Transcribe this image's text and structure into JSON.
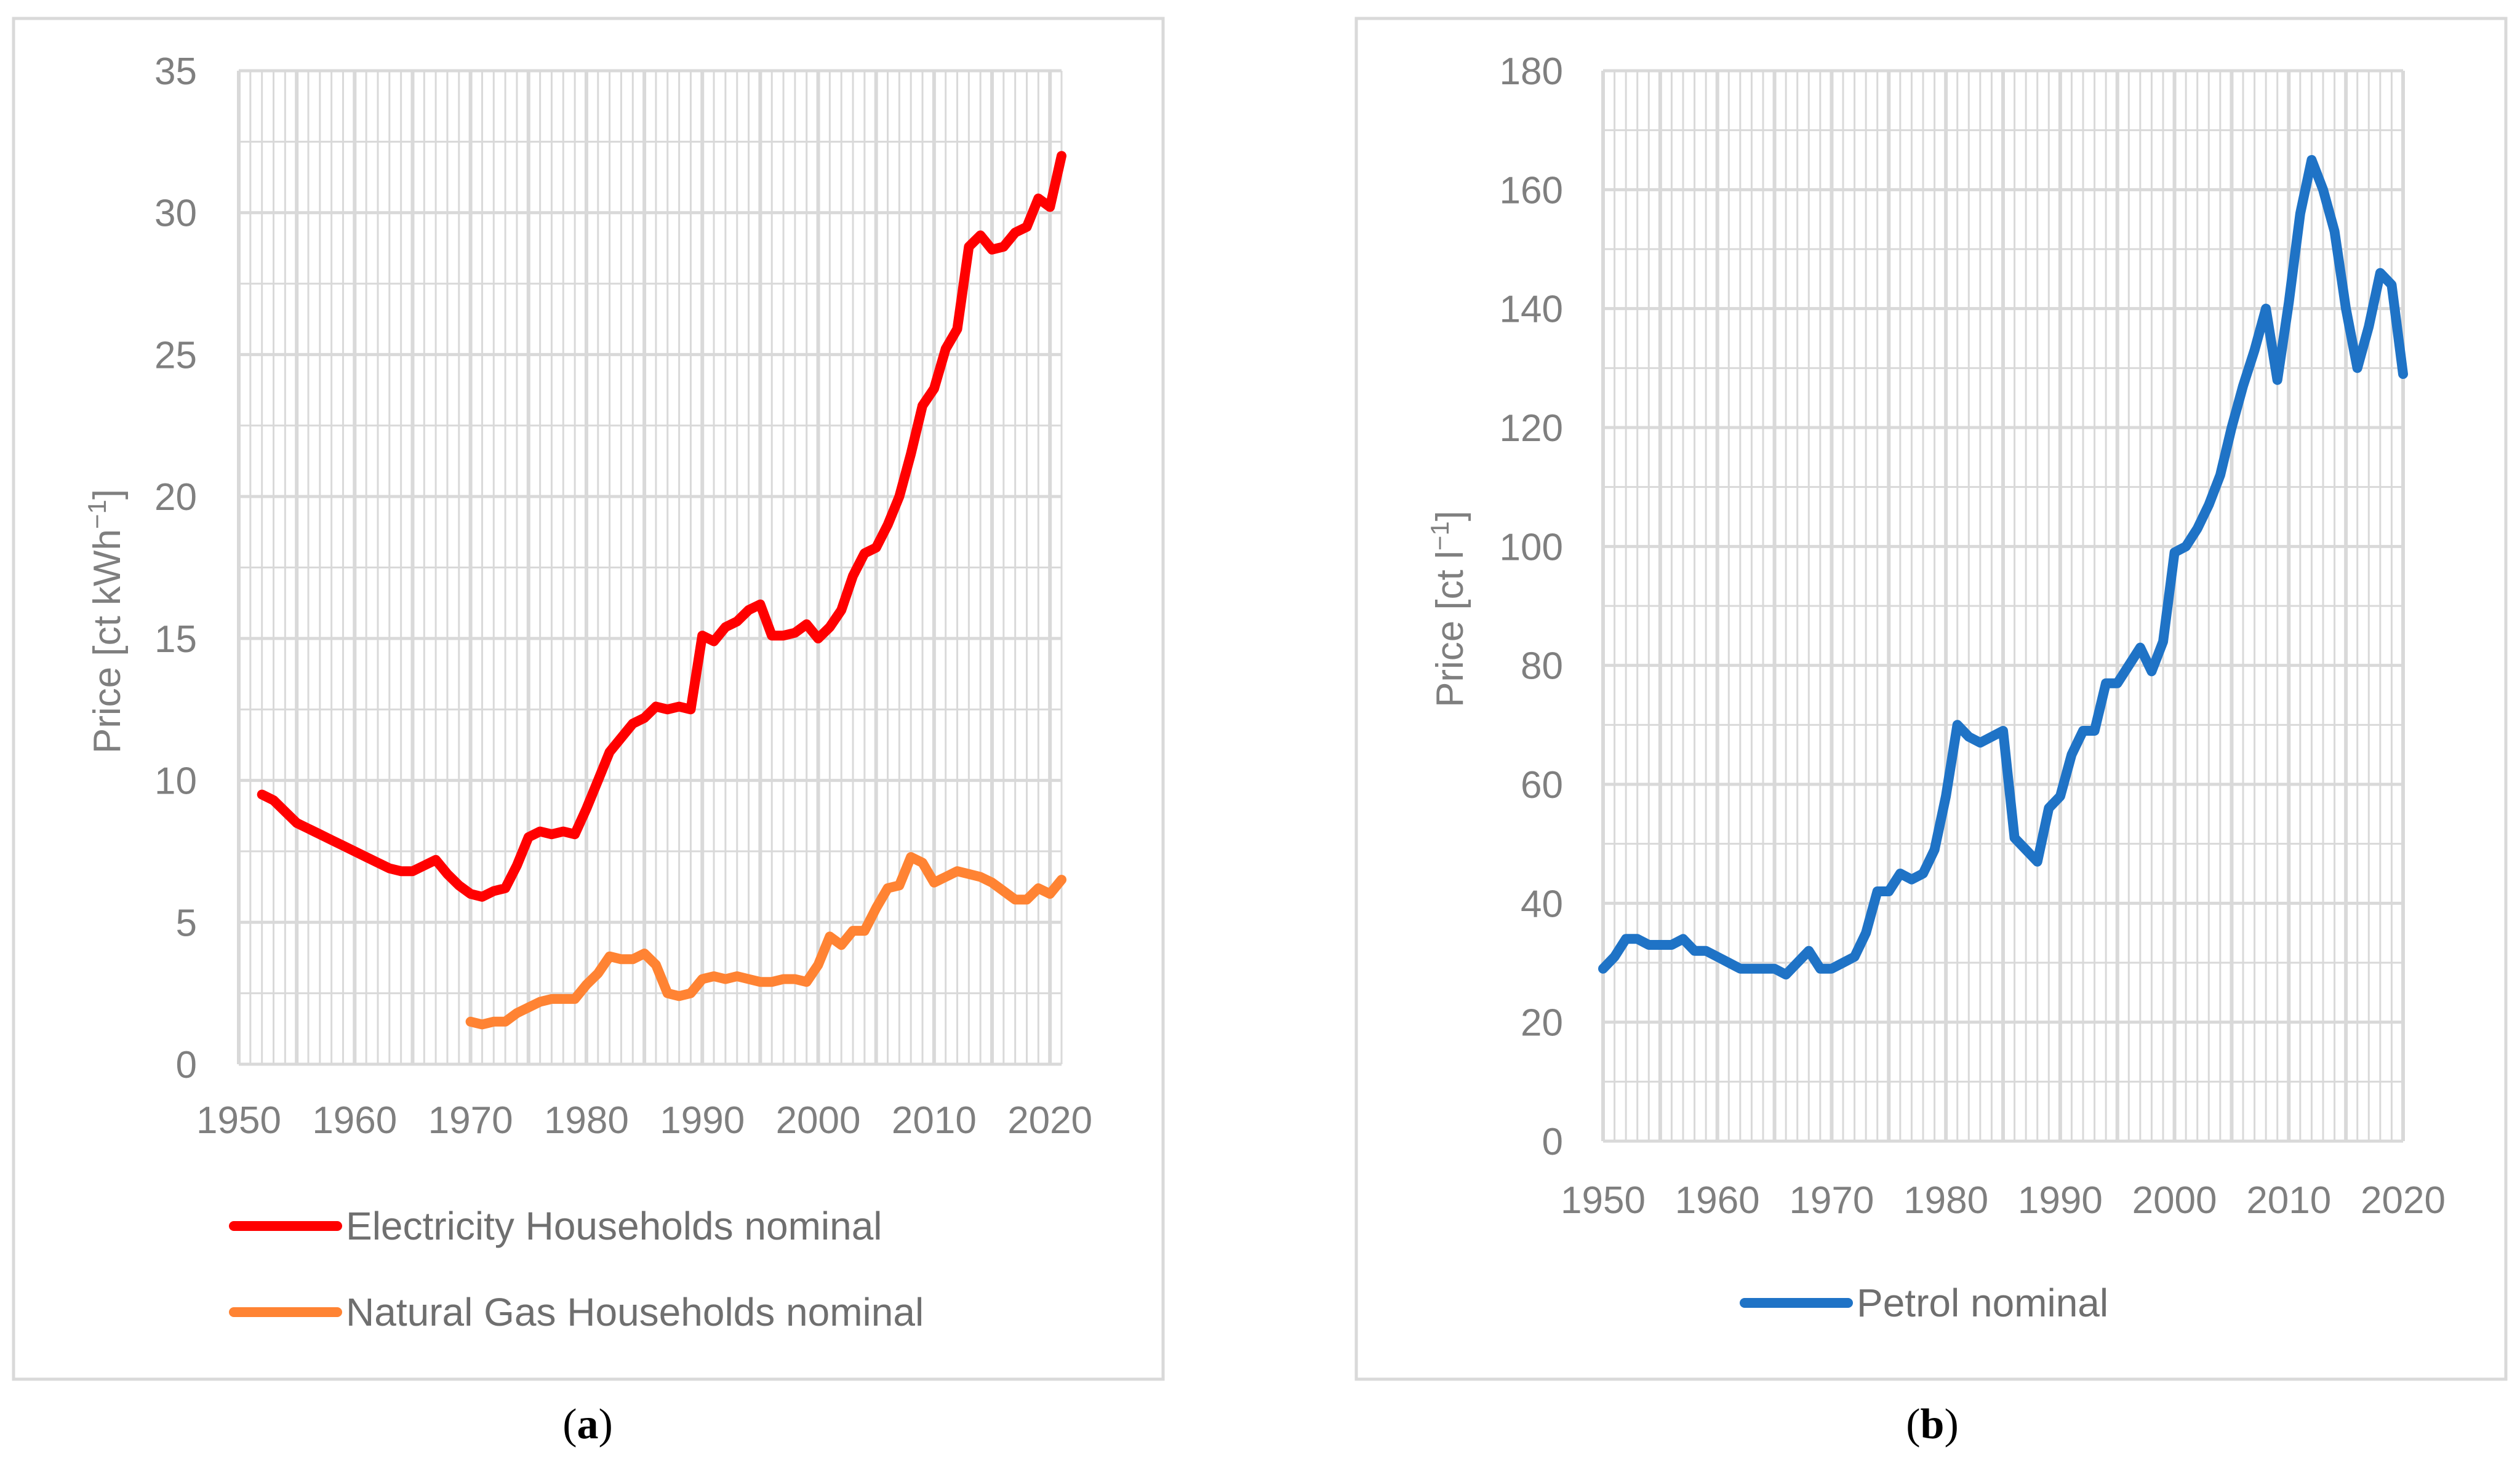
{
  "chart_data": [
    {
      "type": "line",
      "panel": "a",
      "caption_open": "(",
      "caption_letter": "a",
      "caption_close": ")",
      "ylabel": "Price [ct kWh",
      "ylabel_sup": "−1",
      "ylabel_close": "]",
      "xlim": [
        1950,
        2021
      ],
      "ylim": [
        0,
        35
      ],
      "x_ticks": [
        1950,
        1960,
        1970,
        1980,
        1990,
        2000,
        2010,
        2020
      ],
      "y_ticks": [
        0,
        5,
        10,
        15,
        20,
        25,
        30,
        35
      ],
      "grid": true,
      "legend_position": "bottom",
      "series": [
        {
          "name": "Electricity Households nominal",
          "color": "#ff0000",
          "x": [
            1952,
            1953,
            1954,
            1955,
            1956,
            1957,
            1958,
            1959,
            1960,
            1961,
            1962,
            1963,
            1964,
            1965,
            1966,
            1967,
            1968,
            1969,
            1970,
            1971,
            1972,
            1973,
            1974,
            1975,
            1976,
            1977,
            1978,
            1979,
            1980,
            1981,
            1982,
            1983,
            1984,
            1985,
            1986,
            1987,
            1988,
            1989,
            1990,
            1991,
            1992,
            1993,
            1994,
            1995,
            1996,
            1997,
            1998,
            1999,
            2000,
            2001,
            2002,
            2003,
            2004,
            2005,
            2006,
            2007,
            2008,
            2009,
            2010,
            2011,
            2012,
            2013,
            2014,
            2015,
            2016,
            2017,
            2018,
            2019,
            2020,
            2021
          ],
          "values": [
            9.5,
            9.3,
            8.9,
            8.5,
            8.3,
            8.1,
            7.9,
            7.7,
            7.5,
            7.3,
            7.1,
            6.9,
            6.8,
            6.8,
            7.0,
            7.2,
            6.7,
            6.3,
            6.0,
            5.9,
            6.1,
            6.2,
            7.0,
            8.0,
            8.2,
            8.1,
            8.2,
            8.1,
            9.0,
            10.0,
            11.0,
            11.5,
            12.0,
            12.2,
            12.6,
            12.5,
            12.6,
            12.5,
            15.1,
            14.9,
            15.4,
            15.6,
            16.0,
            16.2,
            15.1,
            15.1,
            15.2,
            15.5,
            15.0,
            15.4,
            16.0,
            17.2,
            18.0,
            18.2,
            19.0,
            20.0,
            21.5,
            23.2,
            23.8,
            25.2,
            25.9,
            28.8,
            29.2,
            28.7,
            28.8,
            29.3,
            29.5,
            30.5,
            30.2,
            32.0
          ]
        },
        {
          "name": "Natural Gas Households nominal",
          "color": "#ff8333",
          "x": [
            1970,
            1971,
            1972,
            1973,
            1974,
            1975,
            1976,
            1977,
            1978,
            1979,
            1980,
            1981,
            1982,
            1983,
            1984,
            1985,
            1986,
            1987,
            1988,
            1989,
            1990,
            1991,
            1992,
            1993,
            1994,
            1995,
            1996,
            1997,
            1998,
            1999,
            2000,
            2001,
            2002,
            2003,
            2004,
            2005,
            2006,
            2007,
            2008,
            2009,
            2010,
            2011,
            2012,
            2013,
            2014,
            2015,
            2016,
            2017,
            2018,
            2019,
            2020,
            2021
          ],
          "values": [
            1.5,
            1.4,
            1.5,
            1.5,
            1.8,
            2.0,
            2.2,
            2.3,
            2.3,
            2.3,
            2.8,
            3.2,
            3.8,
            3.7,
            3.7,
            3.9,
            3.5,
            2.5,
            2.4,
            2.5,
            3.0,
            3.1,
            3.0,
            3.1,
            3.0,
            2.9,
            2.9,
            3.0,
            3.0,
            2.9,
            3.5,
            4.5,
            4.2,
            4.7,
            4.7,
            5.5,
            6.2,
            6.3,
            7.3,
            7.1,
            6.4,
            6.6,
            6.8,
            6.7,
            6.6,
            6.4,
            6.1,
            5.8,
            5.8,
            6.2,
            6.0,
            6.5
          ]
        }
      ]
    },
    {
      "type": "line",
      "panel": "b",
      "caption_open": "(",
      "caption_letter": "b",
      "caption_close": ")",
      "ylabel": "Price [ct l",
      "ylabel_sup": "−1",
      "ylabel_close": "]",
      "xlim": [
        1950,
        2020
      ],
      "ylim": [
        0,
        180
      ],
      "x_ticks": [
        1950,
        1960,
        1970,
        1980,
        1990,
        2000,
        2010,
        2020
      ],
      "y_ticks": [
        0,
        20,
        40,
        60,
        80,
        100,
        120,
        140,
        160,
        180
      ],
      "grid": true,
      "legend_position": "bottom",
      "series": [
        {
          "name": "Petrol nominal",
          "color": "#1f73c6",
          "x": [
            1950,
            1951,
            1952,
            1953,
            1954,
            1955,
            1956,
            1957,
            1958,
            1959,
            1960,
            1961,
            1962,
            1963,
            1964,
            1965,
            1966,
            1967,
            1968,
            1969,
            1970,
            1971,
            1972,
            1973,
            1974,
            1975,
            1976,
            1977,
            1978,
            1979,
            1980,
            1981,
            1982,
            1983,
            1984,
            1985,
            1986,
            1987,
            1988,
            1989,
            1990,
            1991,
            1992,
            1993,
            1994,
            1995,
            1996,
            1997,
            1998,
            1999,
            2000,
            2001,
            2002,
            2003,
            2004,
            2005,
            2006,
            2007,
            2008,
            2009,
            2010,
            2011,
            2012,
            2013,
            2014,
            2015,
            2016,
            2017,
            2018,
            2019,
            2020
          ],
          "values": [
            29,
            31,
            34,
            34,
            33,
            33,
            33,
            34,
            32,
            32,
            31,
            30,
            29,
            29,
            29,
            29,
            28,
            30,
            32,
            29,
            29,
            30,
            31,
            35,
            42,
            42,
            45,
            44,
            45,
            49,
            58,
            70,
            68,
            67,
            68,
            69,
            51,
            49,
            47,
            56,
            58,
            65,
            69,
            69,
            77,
            77,
            80,
            83,
            79,
            84,
            99,
            100,
            103,
            107,
            112,
            120,
            127,
            133,
            140,
            128,
            141,
            156,
            165,
            160,
            153,
            140,
            130,
            137,
            146,
            144,
            129
          ]
        }
      ]
    }
  ]
}
